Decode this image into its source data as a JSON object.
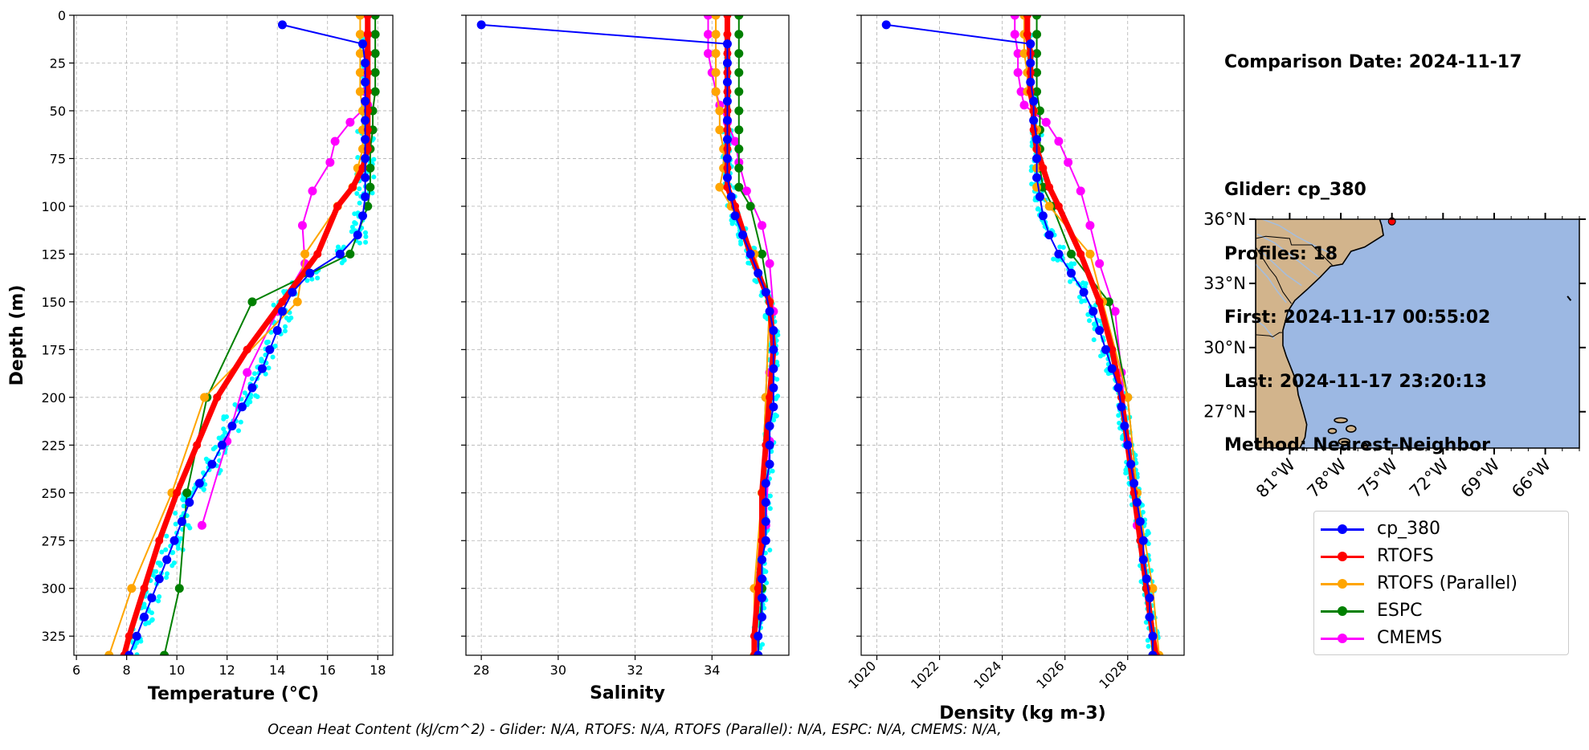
{
  "info": {
    "date_line": "Comparison Date: 2024-11-17",
    "glider_line": "Glider: cp_380",
    "profiles_line": "Profiles: 18",
    "first_line": "First: 2024-11-17 00:55:02",
    "last_line": "Last: 2024-11-17 23:20:13",
    "method_line": "Method: Nearest-Neighbor"
  },
  "caption": "Ocean Heat Content (kJ/cm^2) - Glider: N/A,  RTOFS: N/A,  RTOFS (Parallel): N/A,  ESPC: N/A,  CMEMS: N/A,",
  "colors": {
    "cp_380": "#0000ff",
    "RTOFS": "#ff0000",
    "RTOFS (Parallel)": "#ffa500",
    "ESPC": "#008000",
    "CMEMS": "#ff00ff",
    "raw": "#00ffff",
    "land": "#d2b48c",
    "ocean": "#9cb8e3",
    "grid": "#b0b0b0"
  },
  "legend": [
    "cp_380",
    "RTOFS",
    "RTOFS (Parallel)",
    "ESPC",
    "CMEMS"
  ],
  "chart_data": [
    {
      "type": "line",
      "xlabel": "Temperature (°C)",
      "ylabel": "Depth (m)",
      "xlim": [
        5.9,
        18.6
      ],
      "ylim": [
        335,
        0
      ],
      "xticks": [
        6,
        8,
        10,
        12,
        14,
        16,
        18
      ],
      "yticks": [
        0,
        25,
        50,
        75,
        100,
        125,
        150,
        175,
        200,
        225,
        250,
        275,
        300,
        325
      ],
      "grid": true,
      "series": [
        {
          "name": "cp_380",
          "depth": [
            5,
            15,
            25,
            35,
            45,
            55,
            65,
            75,
            85,
            95,
            105,
            115,
            125,
            135,
            145,
            155,
            165,
            175,
            185,
            195,
            205,
            215,
            225,
            235,
            245,
            255,
            265,
            275,
            285,
            295,
            305,
            315,
            325,
            335
          ],
          "values": [
            14.2,
            17.4,
            17.5,
            17.5,
            17.5,
            17.5,
            17.5,
            17.5,
            17.5,
            17.5,
            17.4,
            17.2,
            16.5,
            15.3,
            14.6,
            14.2,
            14.0,
            13.7,
            13.4,
            13.0,
            12.6,
            12.2,
            11.8,
            11.4,
            10.9,
            10.5,
            10.2,
            9.9,
            9.6,
            9.3,
            9.0,
            8.7,
            8.4,
            8.1
          ]
        },
        {
          "name": "RTOFS",
          "depth": [
            0,
            10,
            20,
            30,
            40,
            50,
            60,
            70,
            80,
            90,
            100,
            125,
            150,
            175,
            200,
            225,
            250,
            275,
            300,
            325,
            335
          ],
          "values": [
            17.6,
            17.6,
            17.6,
            17.6,
            17.6,
            17.6,
            17.6,
            17.6,
            17.4,
            17.0,
            16.4,
            15.6,
            14.2,
            12.8,
            11.6,
            10.8,
            10.0,
            9.3,
            8.7,
            8.1,
            7.9
          ]
        },
        {
          "name": "RTOFS (Parallel)",
          "depth": [
            0,
            10,
            20,
            30,
            40,
            50,
            60,
            70,
            80,
            90,
            100,
            125,
            150,
            200,
            250,
            300,
            335
          ],
          "values": [
            17.3,
            17.3,
            17.3,
            17.3,
            17.3,
            17.4,
            17.4,
            17.4,
            17.2,
            17.0,
            16.4,
            15.1,
            14.8,
            11.1,
            9.8,
            8.2,
            7.3
          ]
        },
        {
          "name": "ESPC",
          "depth": [
            0,
            10,
            20,
            30,
            40,
            50,
            60,
            70,
            80,
            90,
            100,
            125,
            150,
            200,
            250,
            300,
            335
          ],
          "values": [
            17.9,
            17.9,
            17.9,
            17.9,
            17.9,
            17.8,
            17.8,
            17.7,
            17.7,
            17.7,
            17.6,
            16.9,
            13.0,
            11.2,
            10.4,
            10.1,
            9.5
          ]
        },
        {
          "name": "CMEMS",
          "depth": [
            0,
            10,
            20,
            30,
            40,
            47,
            56,
            66,
            77,
            92,
            110,
            130,
            155,
            187,
            223,
            267
          ],
          "values": [
            17.6,
            17.6,
            17.5,
            17.5,
            17.5,
            17.6,
            16.9,
            16.3,
            16.1,
            15.4,
            15.0,
            15.1,
            14.0,
            12.8,
            12.0,
            11.0
          ]
        }
      ]
    },
    {
      "type": "line",
      "xlabel": "Salinity",
      "ylim": [
        335,
        0
      ],
      "xlim": [
        27.6,
        36.0
      ],
      "xticks": [
        28,
        30,
        32,
        34
      ],
      "grid": true,
      "series": [
        {
          "name": "cp_380",
          "depth": [
            5,
            15,
            25,
            35,
            45,
            55,
            65,
            75,
            85,
            95,
            105,
            115,
            125,
            135,
            145,
            155,
            165,
            175,
            185,
            195,
            205,
            215,
            225,
            235,
            245,
            255,
            265,
            275,
            285,
            295,
            305,
            315,
            325,
            335
          ],
          "values": [
            28.0,
            34.4,
            34.4,
            34.4,
            34.4,
            34.4,
            34.4,
            34.4,
            34.4,
            34.5,
            34.6,
            34.8,
            35.0,
            35.2,
            35.4,
            35.5,
            35.6,
            35.6,
            35.6,
            35.6,
            35.6,
            35.5,
            35.5,
            35.5,
            35.4,
            35.4,
            35.4,
            35.4,
            35.3,
            35.3,
            35.3,
            35.3,
            35.2,
            35.2
          ]
        },
        {
          "name": "RTOFS",
          "depth": [
            0,
            10,
            20,
            30,
            40,
            50,
            60,
            70,
            80,
            90,
            100,
            125,
            150,
            175,
            200,
            225,
            250,
            275,
            300,
            325,
            335
          ],
          "values": [
            34.4,
            34.4,
            34.4,
            34.4,
            34.4,
            34.4,
            34.4,
            34.4,
            34.4,
            34.4,
            34.6,
            35.0,
            35.5,
            35.6,
            35.5,
            35.4,
            35.3,
            35.3,
            35.2,
            35.1,
            35.1
          ]
        },
        {
          "name": "RTOFS (Parallel)",
          "depth": [
            0,
            10,
            20,
            30,
            40,
            50,
            60,
            70,
            80,
            90,
            100,
            125,
            150,
            200,
            250,
            300,
            335
          ],
          "values": [
            34.1,
            34.1,
            34.1,
            34.1,
            34.1,
            34.2,
            34.2,
            34.3,
            34.3,
            34.2,
            34.5,
            35.1,
            35.5,
            35.4,
            35.3,
            35.1,
            35.1
          ]
        },
        {
          "name": "ESPC",
          "depth": [
            0,
            10,
            20,
            30,
            40,
            50,
            60,
            70,
            80,
            90,
            100,
            125,
            150,
            200,
            250,
            300,
            335
          ],
          "values": [
            34.7,
            34.7,
            34.7,
            34.7,
            34.7,
            34.7,
            34.7,
            34.7,
            34.7,
            34.7,
            35.0,
            35.3,
            35.5,
            35.4,
            35.3,
            35.3,
            35.2
          ]
        },
        {
          "name": "CMEMS",
          "depth": [
            0,
            10,
            20,
            30,
            40,
            47,
            56,
            66,
            77,
            92,
            110,
            130,
            155,
            187,
            223,
            267
          ],
          "values": [
            33.9,
            33.9,
            33.9,
            34.0,
            34.1,
            34.2,
            34.4,
            34.6,
            34.7,
            34.9,
            35.3,
            35.5,
            35.6,
            35.5,
            35.5,
            35.4
          ]
        }
      ]
    },
    {
      "type": "line",
      "xlabel": "Density (kg m-3)",
      "ylim": [
        335,
        0
      ],
      "xlim": [
        1019.5,
        1029.8
      ],
      "xticks": [
        1020,
        1022,
        1024,
        1026,
        1028
      ],
      "grid": true,
      "series": [
        {
          "name": "cp_380",
          "depth": [
            5,
            15,
            25,
            35,
            45,
            55,
            65,
            75,
            85,
            95,
            105,
            115,
            125,
            135,
            145,
            155,
            165,
            175,
            185,
            195,
            205,
            215,
            225,
            235,
            245,
            255,
            265,
            275,
            285,
            295,
            305,
            315,
            325,
            335
          ],
          "values": [
            1020.3,
            1024.9,
            1024.9,
            1024.9,
            1025.0,
            1025.0,
            1025.1,
            1025.1,
            1025.1,
            1025.2,
            1025.3,
            1025.5,
            1025.8,
            1026.2,
            1026.6,
            1026.9,
            1027.1,
            1027.3,
            1027.5,
            1027.7,
            1027.8,
            1027.9,
            1028.0,
            1028.1,
            1028.2,
            1028.3,
            1028.4,
            1028.5,
            1028.5,
            1028.6,
            1028.7,
            1028.7,
            1028.8,
            1028.8
          ]
        },
        {
          "name": "RTOFS",
          "depth": [
            0,
            10,
            20,
            30,
            40,
            50,
            60,
            70,
            80,
            90,
            100,
            125,
            150,
            175,
            200,
            225,
            250,
            275,
            300,
            325,
            335
          ],
          "values": [
            1024.8,
            1024.8,
            1024.9,
            1024.9,
            1024.9,
            1025.0,
            1025.0,
            1025.1,
            1025.3,
            1025.5,
            1025.8,
            1026.5,
            1027.1,
            1027.5,
            1027.8,
            1028.0,
            1028.2,
            1028.4,
            1028.6,
            1028.8,
            1028.9
          ]
        },
        {
          "name": "RTOFS (Parallel)",
          "depth": [
            0,
            10,
            20,
            30,
            40,
            50,
            60,
            70,
            80,
            90,
            100,
            125,
            150,
            200,
            250,
            300,
            335
          ],
          "values": [
            1024.7,
            1024.7,
            1024.7,
            1024.8,
            1024.8,
            1025.0,
            1025.1,
            1025.1,
            1025.1,
            1025.1,
            1025.5,
            1026.8,
            1027.2,
            1028.0,
            1028.3,
            1028.8,
            1029.0
          ]
        },
        {
          "name": "ESPC",
          "depth": [
            0,
            10,
            20,
            30,
            40,
            50,
            60,
            70,
            80,
            90,
            100,
            125,
            150,
            200,
            250,
            300,
            335
          ],
          "values": [
            1025.1,
            1025.1,
            1025.1,
            1025.1,
            1025.1,
            1025.2,
            1025.2,
            1025.2,
            1025.2,
            1025.3,
            1025.6,
            1026.2,
            1027.4,
            1028.0,
            1028.3,
            1028.6,
            1028.8
          ]
        },
        {
          "name": "CMEMS",
          "depth": [
            0,
            10,
            20,
            30,
            40,
            47,
            56,
            66,
            77,
            92,
            110,
            130,
            155,
            187,
            223,
            267
          ],
          "values": [
            1024.4,
            1024.4,
            1024.5,
            1024.5,
            1024.6,
            1024.7,
            1025.4,
            1025.8,
            1026.1,
            1026.5,
            1026.8,
            1027.1,
            1027.6,
            1027.8,
            1028.0,
            1028.3
          ]
        }
      ]
    }
  ],
  "map": {
    "lat_labels": [
      "36°N",
      "33°N",
      "30°N",
      "27°N"
    ],
    "lon_labels": [
      "81°W",
      "78°W",
      "75°W",
      "72°W",
      "69°W",
      "66°W"
    ],
    "lon_range": [
      -83,
      -64
    ],
    "lat_range": [
      25.3,
      36.0
    ],
    "marker": {
      "lon": -75.0,
      "lat": 35.9
    }
  }
}
